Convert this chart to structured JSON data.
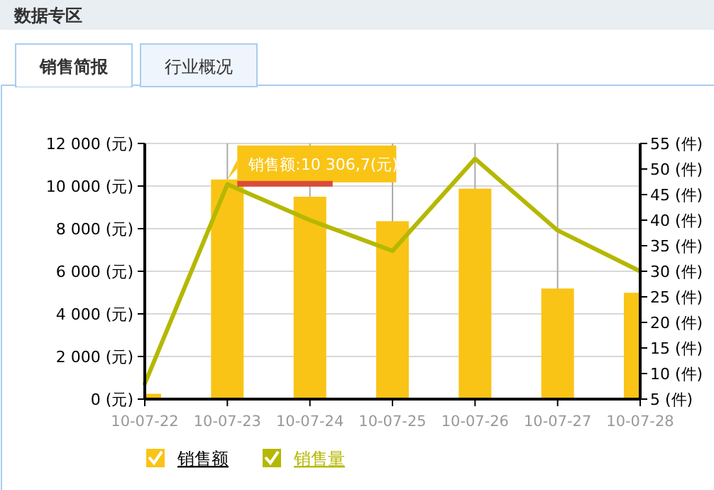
{
  "chart_data": {
    "type": "bar",
    "annotations": [
      "数据专区",
      "销售简报",
      "行业概况",
      {
        "text": "销售额:10 306,7(元)",
        "x": "10-07-23",
        "y": 10306.7
      }
    ],
    "categories": [
      "10-07-22",
      "10-07-23",
      "10-07-24",
      "10-07-25",
      "10-07-26",
      "10-07-27",
      "10-07-28"
    ],
    "series": [
      {
        "name": "销售额",
        "color": "#f9c416",
        "values": [
          250,
          10306.7,
          9500,
          8350,
          9880,
          5190,
          4990
        ]
      },
      {
        "name": "销售量",
        "type": "line",
        "axis": "y2",
        "color": "#b5b800",
        "values": [
          8,
          47,
          40,
          34,
          52,
          38,
          30
        ]
      }
    ],
    "ylim": [
      0,
      12000
    ],
    "yticks": [
      {
        "value": 0,
        "label": "0 (元)"
      },
      {
        "value": 2000,
        "label": "2 000 (元)"
      },
      {
        "value": 4000,
        "label": "4 000 (元)"
      },
      {
        "value": 6000,
        "label": "6 000 (元)"
      },
      {
        "value": 8000,
        "label": "8 000 (元)"
      },
      {
        "value": 10000,
        "label": "10 000 (元)"
      },
      {
        "value": 12000,
        "label": "12 000 (元)"
      }
    ],
    "y2lim": [
      5,
      55
    ],
    "y2ticks": [
      {
        "value": 5,
        "label": "5 (件)"
      },
      {
        "value": 10,
        "label": "10 (件)"
      },
      {
        "value": 15,
        "label": "15 (件)"
      },
      {
        "value": 20,
        "label": "20 (件)"
      },
      {
        "value": 25,
        "label": "25 (件)"
      },
      {
        "value": 30,
        "label": "30 (件)"
      },
      {
        "value": 35,
        "label": "35 (件)"
      },
      {
        "value": 40,
        "label": "40 (件)"
      },
      {
        "value": 45,
        "label": "45 (件)"
      },
      {
        "value": 50,
        "label": "50 (件)"
      },
      {
        "value": 55,
        "label": "55 (件)"
      }
    ],
    "grid": true,
    "legend": "bottom left"
  }
}
